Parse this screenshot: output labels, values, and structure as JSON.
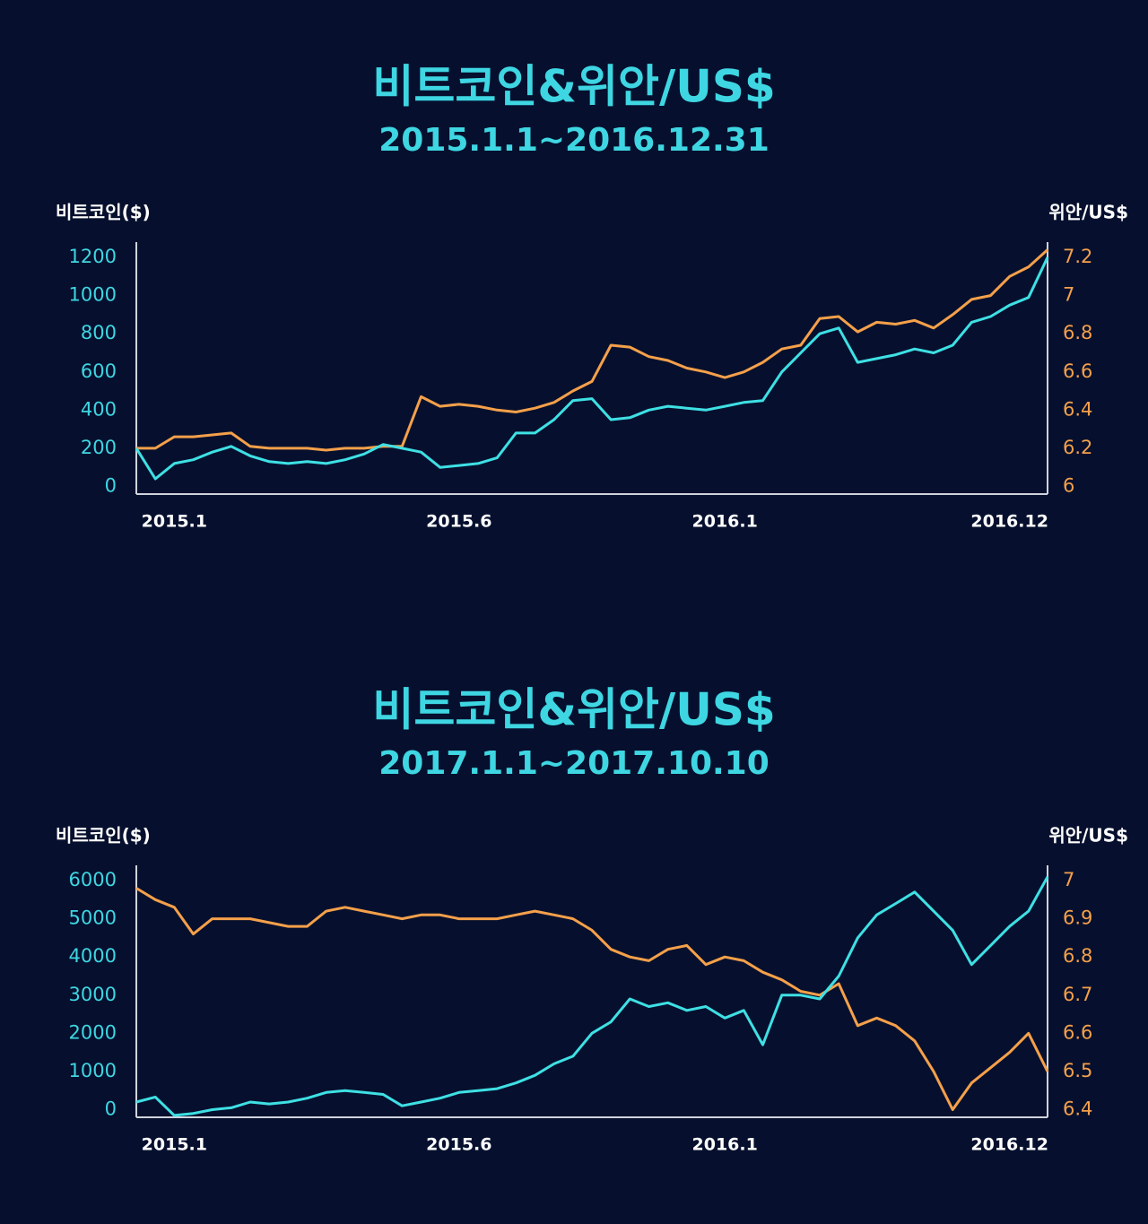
{
  "chart_data": [
    {
      "type": "line",
      "title": "비트코인&위안/US$",
      "subtitle": "2015.1.1~2016.12.31",
      "y_label": "비트코인($)",
      "y2_label": "위안/US$",
      "categories": [
        null,
        null,
        "2015.1",
        null,
        null,
        null,
        null,
        null,
        null,
        null,
        null,
        null,
        null,
        null,
        null,
        null,
        null,
        "2015.6",
        null,
        null,
        null,
        null,
        null,
        null,
        null,
        null,
        null,
        null,
        null,
        null,
        null,
        "2016.1",
        null,
        null,
        null,
        null,
        null,
        null,
        null,
        null,
        null,
        null,
        null,
        null,
        null,
        null,
        "2016.12",
        null,
        null
      ],
      "series": [
        {
          "color": "#3ee0e4",
          "axis": "y",
          "values": [
            200,
            40,
            120,
            140,
            180,
            210,
            160,
            130,
            120,
            130,
            120,
            140,
            170,
            220,
            200,
            180,
            100,
            110,
            120,
            150,
            280,
            280,
            350,
            450,
            460,
            350,
            360,
            400,
            420,
            410,
            400,
            420,
            440,
            450,
            600,
            700,
            800,
            830,
            650,
            670,
            690,
            720,
            700,
            740,
            860,
            890,
            950,
            990,
            1200
          ]
        },
        {
          "color": "#f5a04a",
          "axis": "y2",
          "values": [
            6.2,
            6.2,
            6.26,
            6.26,
            6.27,
            6.28,
            6.21,
            6.2,
            6.2,
            6.2,
            6.19,
            6.2,
            6.2,
            6.21,
            6.21,
            6.47,
            6.42,
            6.43,
            6.42,
            6.4,
            6.39,
            6.41,
            6.44,
            6.5,
            6.55,
            6.74,
            6.73,
            6.68,
            6.66,
            6.62,
            6.6,
            6.57,
            6.6,
            6.65,
            6.72,
            6.74,
            6.88,
            6.89,
            6.81,
            6.86,
            6.85,
            6.87,
            6.83,
            6.9,
            6.98,
            7.0,
            7.1,
            7.15,
            7.24
          ]
        }
      ],
      "ylim": [
        -40,
        1280
      ],
      "yticks": [
        0,
        200,
        400,
        600,
        800,
        1000,
        1200
      ],
      "y2lim": [
        5.96,
        7.28
      ],
      "y2ticks": [
        6,
        6.2,
        6.4,
        6.6,
        6.8,
        7,
        7.2
      ]
    },
    {
      "type": "line",
      "title": "비트코인&위안/US$",
      "subtitle": "2017.1.1~2017.10.10",
      "y_label": "비트코인($)",
      "y2_label": "위안/US$",
      "categories": [
        null,
        null,
        "2015.1",
        null,
        null,
        null,
        null,
        null,
        null,
        null,
        null,
        null,
        null,
        null,
        null,
        null,
        null,
        "2015.6",
        null,
        null,
        null,
        null,
        null,
        null,
        null,
        null,
        null,
        null,
        null,
        null,
        null,
        "2016.1",
        null,
        null,
        null,
        null,
        null,
        null,
        null,
        null,
        null,
        null,
        null,
        null,
        null,
        null,
        "2016.12",
        null,
        null
      ],
      "series": [
        {
          "color": "#3ee0e4",
          "axis": "y",
          "values": [
            200,
            330,
            -150,
            -100,
            0,
            50,
            200,
            150,
            200,
            300,
            450,
            500,
            450,
            400,
            100,
            200,
            300,
            450,
            500,
            550,
            700,
            900,
            1200,
            1400,
            2000,
            2300,
            2900,
            2700,
            2800,
            2600,
            2700,
            2400,
            2600,
            1700,
            3000,
            3000,
            2900,
            3500,
            4500,
            5100,
            5400,
            5700,
            5200,
            4700,
            3800,
            4300,
            4800,
            5200,
            6100
          ]
        },
        {
          "color": "#f5a04a",
          "axis": "y2",
          "values": [
            6.98,
            6.95,
            6.93,
            6.86,
            6.9,
            6.9,
            6.9,
            6.89,
            6.88,
            6.88,
            6.92,
            6.93,
            6.92,
            6.91,
            6.9,
            6.91,
            6.91,
            6.9,
            6.9,
            6.9,
            6.91,
            6.92,
            6.91,
            6.9,
            6.87,
            6.82,
            6.8,
            6.79,
            6.82,
            6.83,
            6.78,
            6.8,
            6.79,
            6.76,
            6.74,
            6.71,
            6.7,
            6.73,
            6.62,
            6.64,
            6.62,
            6.58,
            6.5,
            6.4,
            6.47,
            6.51,
            6.55,
            6.6,
            6.5
          ]
        }
      ],
      "ylim": [
        -200,
        6400
      ],
      "yticks": [
        0,
        1000,
        2000,
        3000,
        4000,
        5000,
        6000
      ],
      "y2lim": [
        6.38,
        7.04
      ],
      "y2ticks": [
        6.4,
        6.5,
        6.6,
        6.7,
        6.8,
        6.9,
        7
      ]
    }
  ]
}
